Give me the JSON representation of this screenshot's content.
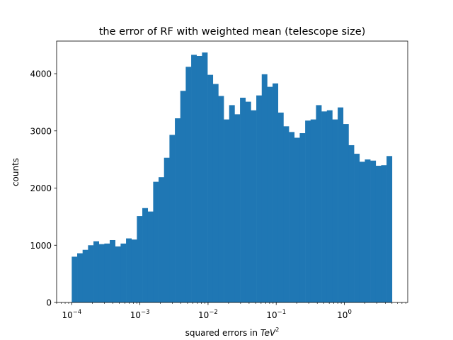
{
  "chart_data": {
    "type": "bar",
    "title": "the error of RF with weighted mean (telescope size)",
    "xlabel": "squared errors in ",
    "xlabel_math": "TeV",
    "xlabel_power": "2",
    "ylabel": "counts",
    "x_scale": "log",
    "xlim": [
      6e-05,
      8.5
    ],
    "ylim": [
      0,
      4570
    ],
    "x_ticks": [
      {
        "value": 0.0001,
        "base": "10",
        "exp": "−4"
      },
      {
        "value": 0.001,
        "base": "10",
        "exp": "−3"
      },
      {
        "value": 0.01,
        "base": "10",
        "exp": "−2"
      },
      {
        "value": 0.1,
        "base": "10",
        "exp": "−1"
      },
      {
        "value": 1,
        "base": "10",
        "exp": "0"
      }
    ],
    "y_ticks": [
      0,
      1000,
      2000,
      3000,
      4000
    ],
    "bin_start": 0.0001,
    "bin_end": 5,
    "counts": [
      800,
      860,
      920,
      1000,
      1070,
      1020,
      1030,
      1090,
      980,
      1030,
      1120,
      1100,
      1510,
      1650,
      1590,
      2110,
      2190,
      2530,
      2930,
      3220,
      3700,
      4120,
      4330,
      4310,
      4370,
      3980,
      3820,
      3610,
      3200,
      3450,
      3290,
      3580,
      3510,
      3360,
      3620,
      3990,
      3770,
      3830,
      3320,
      3080,
      2980,
      2880,
      2960,
      3180,
      3200,
      3450,
      3340,
      3360,
      3200,
      3410,
      3120,
      2750,
      2600,
      2460,
      2500,
      2480,
      2390,
      2400,
      2560
    ],
    "colors": {
      "bars": "#1f77b4",
      "axes": "#000000",
      "background": "#ffffff"
    }
  }
}
